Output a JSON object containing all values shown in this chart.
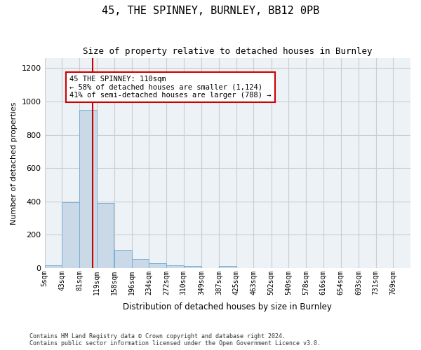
{
  "title": "45, THE SPINNEY, BURNLEY, BB12 0PB",
  "subtitle": "Size of property relative to detached houses in Burnley",
  "xlabel": "Distribution of detached houses by size in Burnley",
  "ylabel": "Number of detached properties",
  "bin_labels": [
    "5sqm",
    "43sqm",
    "81sqm",
    "119sqm",
    "158sqm",
    "196sqm",
    "234sqm",
    "272sqm",
    "310sqm",
    "349sqm",
    "387sqm",
    "425sqm",
    "463sqm",
    "502sqm",
    "540sqm",
    "578sqm",
    "616sqm",
    "654sqm",
    "693sqm",
    "731sqm",
    "769sqm"
  ],
  "bin_edges": [
    5,
    43,
    81,
    119,
    158,
    196,
    234,
    272,
    310,
    349,
    387,
    425,
    463,
    502,
    540,
    578,
    616,
    654,
    693,
    731,
    769
  ],
  "bar_heights": [
    15,
    395,
    950,
    390,
    110,
    52,
    28,
    15,
    12,
    0,
    12,
    0,
    0,
    0,
    0,
    0,
    0,
    0,
    0,
    0
  ],
  "bar_color": "#c9d9e8",
  "bar_edge_color": "#7bafd4",
  "property_size": 110,
  "vline_color": "#cc0000",
  "annotation_text": "45 THE SPINNEY: 110sqm\n← 58% of detached houses are smaller (1,124)\n41% of semi-detached houses are larger (788) →",
  "annotation_box_color": "#ffffff",
  "annotation_box_edge": "#cc0000",
  "ylim": [
    0,
    1260
  ],
  "yticks": [
    0,
    200,
    400,
    600,
    800,
    1000,
    1200
  ],
  "grid_color": "#cccccc",
  "background_color": "#edf2f7",
  "footer_line1": "Contains HM Land Registry data © Crown copyright and database right 2024.",
  "footer_line2": "Contains public sector information licensed under the Open Government Licence v3.0."
}
